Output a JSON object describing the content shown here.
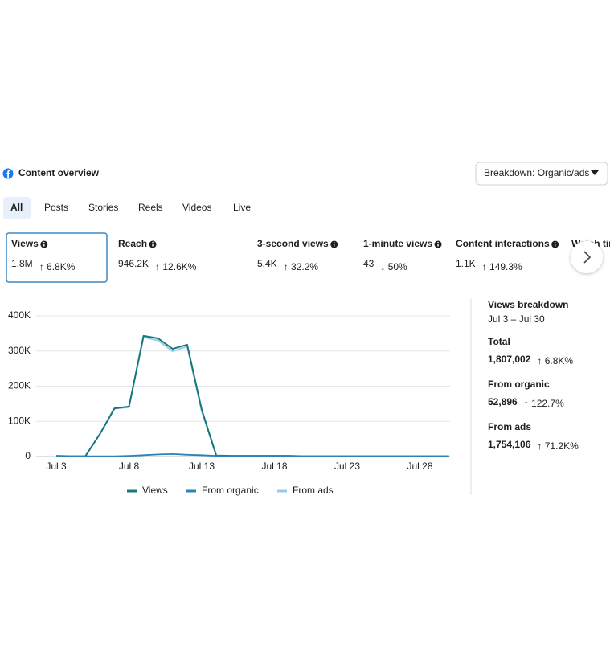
{
  "header": {
    "title": "Content overview",
    "breakdown": "Breakdown: Organic/ads"
  },
  "tabs": [
    "All",
    "Posts",
    "Stories",
    "Reels",
    "Videos",
    "Live"
  ],
  "metrics": [
    {
      "label": "Views",
      "value": "1.8M",
      "change": "↑ 6.8K%"
    },
    {
      "label": "Reach",
      "value": "946.2K",
      "change": "↑ 12.6K%"
    },
    {
      "label": "3-second views",
      "value": "5.4K",
      "change": "↑ 32.2%"
    },
    {
      "label": "1-minute views",
      "value": "43",
      "change": "↓ 50%"
    },
    {
      "label": "Content interactions",
      "value": "1.1K",
      "change": "↑ 149.3%"
    },
    {
      "label": "Watch time"
    }
  ],
  "chart_data": {
    "type": "line",
    "categories": [
      "Jul 3",
      null,
      null,
      null,
      null,
      "Jul 8",
      null,
      null,
      null,
      null,
      "Jul 13",
      null,
      null,
      null,
      null,
      "Jul 18",
      null,
      null,
      null,
      null,
      "Jul 23",
      null,
      null,
      null,
      null,
      "Jul 28",
      null,
      null
    ],
    "series": [
      {
        "name": "Views",
        "color": "#17777a",
        "values": [
          2000,
          1000,
          1000,
          64000,
          137000,
          142000,
          343000,
          336000,
          306000,
          318000,
          133000,
          3000,
          2000,
          2000,
          2000,
          2000,
          2000,
          1000,
          1000,
          1000,
          1000,
          1000,
          1000,
          1000,
          1000,
          1000,
          1000,
          1000
        ]
      },
      {
        "name": "From organic",
        "color": "#2b83b4",
        "values": [
          1000,
          1000,
          1000,
          1000,
          1000,
          2000,
          4000,
          6000,
          7000,
          5000,
          4000,
          2000,
          1000,
          1000,
          1000,
          1000,
          1000,
          1000,
          1000,
          1000,
          1000,
          1000,
          1000,
          1000,
          1000,
          1000,
          1000,
          1000
        ]
      },
      {
        "name": "From ads",
        "color": "#93cde8",
        "values": [
          1000,
          0,
          0,
          63000,
          136000,
          140000,
          339000,
          330000,
          299000,
          313000,
          129000,
          1000,
          1000,
          1000,
          1000,
          1000,
          1000,
          0,
          0,
          0,
          0,
          0,
          0,
          0,
          0,
          0,
          0,
          0
        ]
      }
    ],
    "ylim": [
      0,
      400000
    ],
    "yticks": [
      {
        "value": 0,
        "label": "0"
      },
      {
        "value": 100000,
        "label": "100K"
      },
      {
        "value": 200000,
        "label": "200K"
      },
      {
        "value": 300000,
        "label": "300K"
      },
      {
        "value": 400000,
        "label": "400K"
      }
    ],
    "grid": true
  },
  "breakdown": {
    "title": "Views breakdown",
    "range": "Jul 3 – Jul 30",
    "rows": [
      {
        "label": "Total",
        "value": "1,807,002",
        "change": "↑ 6.8K%"
      },
      {
        "label": "From organic",
        "value": "52,896",
        "change": "↑ 122.7%"
      },
      {
        "label": "From ads",
        "value": "1,754,106",
        "change": "↑ 71.2K%"
      }
    ]
  }
}
